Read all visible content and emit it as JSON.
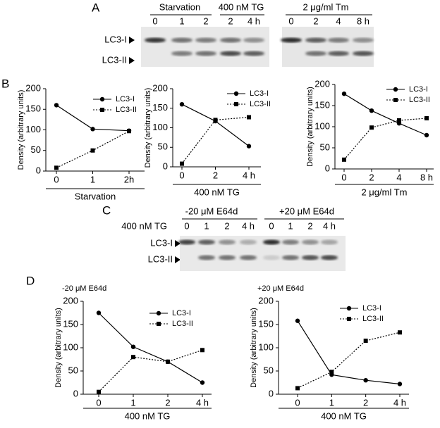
{
  "panels": {
    "a": "A",
    "b": "B",
    "c": "C",
    "d": "D"
  },
  "blot_a": {
    "groups": [
      "Starvation",
      "400 nM TG",
      "2 μg/ml Tm"
    ],
    "lanes_1": [
      "0",
      "1",
      "2",
      "2",
      "4 h"
    ],
    "lanes_2": [
      "0",
      "2",
      "4",
      "8 h"
    ],
    "rows": [
      "LC3-I",
      "LC3-II"
    ]
  },
  "blot_c": {
    "groups": [
      "-20 μM E64d",
      "+20 μM E64d"
    ],
    "treatment": "400 nM TG",
    "lanes": [
      "0",
      "1",
      "2",
      "4 h",
      "0",
      "1",
      "2",
      "4 h"
    ],
    "rows": [
      "LC3-I",
      "LC3-II"
    ]
  },
  "chart_data": [
    {
      "type": "line",
      "ylabel": "Density (arbitrary units)",
      "xlabel": "Starvation",
      "categories": [
        "0",
        "1",
        "2h"
      ],
      "ylim": [
        0,
        200
      ],
      "yticks": [
        0,
        50,
        100,
        150,
        200
      ],
      "series": [
        {
          "name": "LC3-I",
          "color": "#000000",
          "style": "solid",
          "marker": "circle",
          "values": [
            160,
            102,
            98
          ]
        },
        {
          "name": "LC3-II",
          "color": "#000000",
          "style": "dotted",
          "marker": "square",
          "values": [
            8,
            50,
            97
          ]
        }
      ]
    },
    {
      "type": "line",
      "ylabel": "Density (arbitrary units)",
      "xlabel": "400 nM TG",
      "categories": [
        "0",
        "2",
        "4 h"
      ],
      "ylim": [
        0,
        200
      ],
      "yticks": [
        0,
        50,
        100,
        150,
        200
      ],
      "series": [
        {
          "name": "LC3-I",
          "color": "#000000",
          "style": "solid",
          "marker": "circle",
          "values": [
            160,
            117,
            53
          ]
        },
        {
          "name": "LC3-II",
          "color": "#000000",
          "style": "dotted",
          "marker": "square",
          "values": [
            8,
            120,
            127
          ]
        }
      ]
    },
    {
      "type": "line",
      "ylabel": "Density (arbitrary units)",
      "xlabel": "2 μg/ml Tm",
      "categories": [
        "0",
        "2",
        "4",
        "8 h"
      ],
      "ylim": [
        0,
        200
      ],
      "yticks": [
        0,
        50,
        100,
        150,
        200
      ],
      "series": [
        {
          "name": "LC3-I",
          "color": "#000000",
          "style": "solid",
          "marker": "circle",
          "values": [
            178,
            138,
            108,
            80
          ]
        },
        {
          "name": "LC3-II",
          "color": "#000000",
          "style": "dotted",
          "marker": "square",
          "values": [
            22,
            98,
            115,
            120
          ]
        }
      ]
    },
    {
      "type": "line",
      "title": "-20 μM E64d",
      "ylabel": "Density (arbitrary units)",
      "xlabel": "400 nM TG",
      "categories": [
        "0",
        "1",
        "2",
        "4 h"
      ],
      "ylim": [
        0,
        200
      ],
      "yticks": [
        0,
        50,
        100,
        150,
        200
      ],
      "series": [
        {
          "name": "LC3-I",
          "color": "#000000",
          "style": "solid",
          "marker": "circle",
          "values": [
            175,
            102,
            70,
            25
          ]
        },
        {
          "name": "LC3-II",
          "color": "#000000",
          "style": "dotted",
          "marker": "square",
          "values": [
            5,
            80,
            70,
            95
          ]
        }
      ]
    },
    {
      "type": "line",
      "title": "+20 μM E64d",
      "ylabel": "Density (arbitrary units)",
      "xlabel": "400 nM TG",
      "categories": [
        "0",
        "1",
        "2",
        "4 h"
      ],
      "ylim": [
        0,
        200
      ],
      "yticks": [
        0,
        50,
        100,
        150,
        200
      ],
      "series": [
        {
          "name": "LC3-I",
          "color": "#000000",
          "style": "solid",
          "marker": "circle",
          "values": [
            158,
            42,
            30,
            22
          ]
        },
        {
          "name": "LC3-II",
          "color": "#000000",
          "style": "dotted",
          "marker": "square",
          "values": [
            13,
            48,
            115,
            133
          ]
        }
      ]
    }
  ]
}
